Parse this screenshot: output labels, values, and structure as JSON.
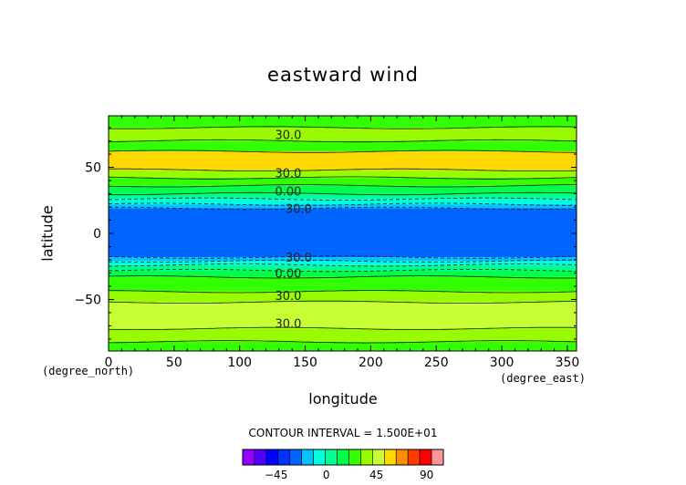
{
  "chart_data": {
    "type": "heatmap",
    "title": "eastward wind",
    "xlabel": "longitude",
    "ylabel": "latitude",
    "x_unit": "(degree_east)",
    "y_unit": "(degree_north)",
    "xlim": [
      0,
      357
    ],
    "ylim": [
      -89,
      89
    ],
    "xticks": [
      0,
      50,
      100,
      150,
      200,
      250,
      300,
      350
    ],
    "yticks": [
      -50,
      0,
      50
    ],
    "xtick_labels": [
      "0",
      "50",
      "100",
      "150",
      "200",
      "250",
      "300",
      "350"
    ],
    "ytick_labels": [
      "−50",
      "0",
      "50"
    ],
    "contour_interval_text": "CONTOUR INTERVAL = 1.500E+01",
    "contour_labels": [
      {
        "text": "30.0",
        "lon": 127,
        "lat": 75
      },
      {
        "text": "30.0",
        "lon": 127,
        "lat": 46
      },
      {
        "text": "0.00",
        "lon": 127,
        "lat": 32
      },
      {
        "text": "30.0",
        "lon": 135,
        "lat": 19
      },
      {
        "text": "30.0",
        "lon": 135,
        "lat": -18
      },
      {
        "text": "0.00",
        "lon": 127,
        "lat": -30
      },
      {
        "text": "30.0",
        "lon": 127,
        "lat": -47
      },
      {
        "text": "30.0",
        "lon": 127,
        "lat": -68
      }
    ],
    "bands": [
      {
        "lat_min": 80,
        "lat_max": 89,
        "color": "#32ff00"
      },
      {
        "lat_min": 70,
        "lat_max": 80,
        "color": "#98fb00"
      },
      {
        "lat_min": 62,
        "lat_max": 70,
        "color": "#32ff00"
      },
      {
        "lat_min": 48,
        "lat_max": 62,
        "color": "#ffd800"
      },
      {
        "lat_min": 42,
        "lat_max": 48,
        "color": "#98fb00"
      },
      {
        "lat_min": 36,
        "lat_max": 42,
        "color": "#32ff00"
      },
      {
        "lat_min": 30,
        "lat_max": 36,
        "color": "#00ff49"
      },
      {
        "lat_min": 26,
        "lat_max": 30,
        "color": "#00ff95"
      },
      {
        "lat_min": 22,
        "lat_max": 26,
        "color": "#00ffe0"
      },
      {
        "lat_min": 19,
        "lat_max": 22,
        "color": "#00c3ff"
      },
      {
        "lat_min": -18,
        "lat_max": 19,
        "color": "#0064ff"
      },
      {
        "lat_min": -21,
        "lat_max": -18,
        "color": "#00c3ff"
      },
      {
        "lat_min": -24,
        "lat_max": -21,
        "color": "#00ffe0"
      },
      {
        "lat_min": -28,
        "lat_max": -24,
        "color": "#00ff95"
      },
      {
        "lat_min": -33,
        "lat_max": -28,
        "color": "#00ff49"
      },
      {
        "lat_min": -44,
        "lat_max": -33,
        "color": "#32ff00"
      },
      {
        "lat_min": -52,
        "lat_max": -44,
        "color": "#98fb00"
      },
      {
        "lat_min": -72,
        "lat_max": -52,
        "color": "#c6ff33"
      },
      {
        "lat_min": -82,
        "lat_max": -72,
        "color": "#98fb00"
      },
      {
        "lat_min": -89,
        "lat_max": -82,
        "color": "#32ff00"
      }
    ],
    "colorbar": {
      "min": -75,
      "max": 105,
      "ticks": [
        -45,
        0,
        45,
        90
      ],
      "tick_labels": [
        "−45",
        "0",
        "45",
        "90"
      ],
      "colors": [
        "#9600ff",
        "#5000ff",
        "#0000ff",
        "#0032ff",
        "#0064ff",
        "#00c3ff",
        "#00ffe0",
        "#00ff95",
        "#00ff49",
        "#32ff00",
        "#98fb00",
        "#c6ff33",
        "#ffd800",
        "#ff8c00",
        "#ff3c00",
        "#ff0000",
        "#ff9696"
      ]
    }
  }
}
